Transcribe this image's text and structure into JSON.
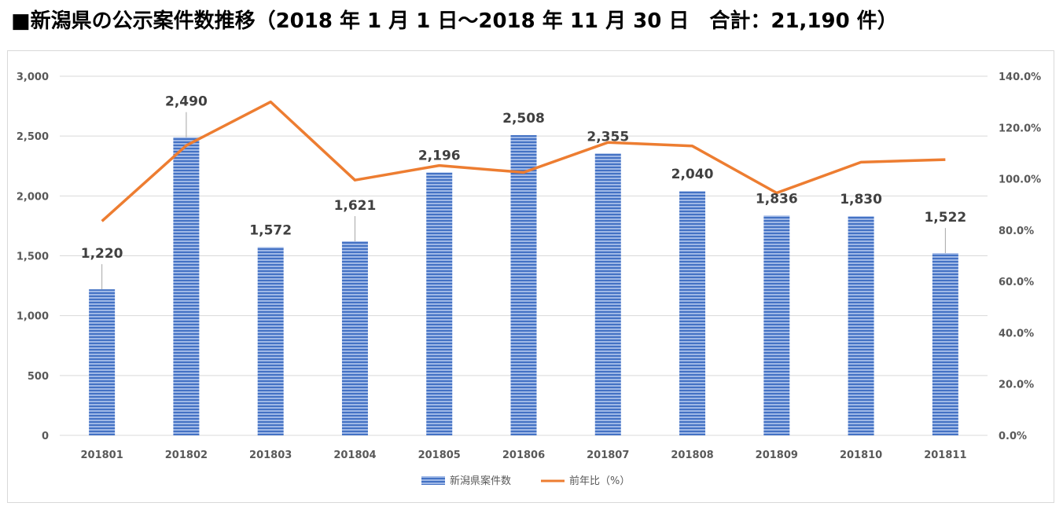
{
  "title": "■新潟県の公示案件数推移（2018 年 1 月 1 日～2018 年 11 月 30 日　合計：21,190 件）",
  "chart_data": {
    "type": "bar+line",
    "categories": [
      "201801",
      "201802",
      "201803",
      "201804",
      "201805",
      "201806",
      "201807",
      "201808",
      "201809",
      "201810",
      "201811"
    ],
    "series": [
      {
        "name": "新潟県案件数",
        "type": "bar",
        "axis": "left",
        "values": [
          1220,
          2490,
          1572,
          1621,
          2196,
          2508,
          2355,
          2040,
          1836,
          1830,
          1522
        ],
        "labels": [
          "1,220",
          "2,490",
          "1,572",
          "1,621",
          "2,196",
          "2,508",
          "2,355",
          "2,040",
          "1,836",
          "1,830",
          "1,522"
        ],
        "color": "#4472c4"
      },
      {
        "name": "前年比（%）",
        "type": "line",
        "axis": "right",
        "values": [
          83.5,
          113.0,
          130.0,
          99.5,
          105.2,
          102.5,
          114.2,
          112.8,
          94.5,
          106.5,
          107.5
        ],
        "color": "#ed7d31"
      }
    ],
    "y_left": {
      "ylim": [
        0,
        3000
      ],
      "ticks": [
        "0",
        "500",
        "1,000",
        "1,500",
        "2,000",
        "2,500",
        "3,000"
      ]
    },
    "y_right": {
      "ylim": [
        0,
        140
      ],
      "ticks": [
        "0.0%",
        "20.0%",
        "40.0%",
        "60.0%",
        "80.0%",
        "100.0%",
        "120.0%",
        "140.0%"
      ]
    },
    "grid": true,
    "legend_position": "bottom"
  }
}
